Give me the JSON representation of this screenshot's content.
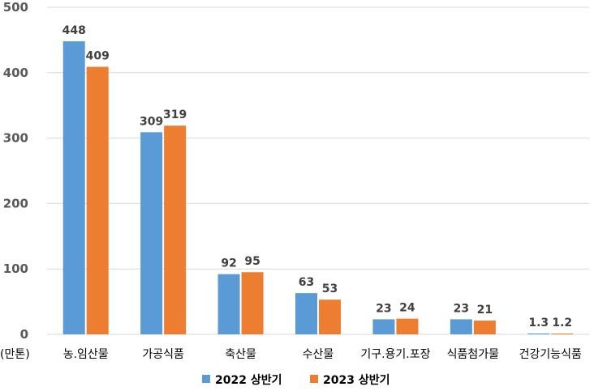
{
  "chart_data": {
    "type": "bar",
    "categories": [
      "농.임산물",
      "가공식품",
      "축산물",
      "수산물",
      "기구.용기.포장",
      "식품첨가물",
      "건강기능식품"
    ],
    "series": [
      {
        "name": "2022 상반기",
        "color": "#5b9bd5",
        "values": [
          448,
          309,
          92,
          63,
          23,
          23,
          1.3
        ],
        "labels": [
          "448",
          "309",
          "92",
          "63",
          "23",
          "23",
          "1.3"
        ]
      },
      {
        "name": "2023 상반기",
        "color": "#ed7d31",
        "values": [
          409,
          319,
          95,
          53,
          24,
          21,
          1.2
        ],
        "labels": [
          "409",
          "319",
          "95",
          "53",
          "24",
          "21",
          "1.2"
        ]
      }
    ],
    "unit_label": "(만톤)",
    "ylim": [
      0,
      500
    ],
    "yticks": [
      0,
      100,
      200,
      300,
      400,
      500
    ],
    "grid": true,
    "legend_position": "bottom"
  }
}
